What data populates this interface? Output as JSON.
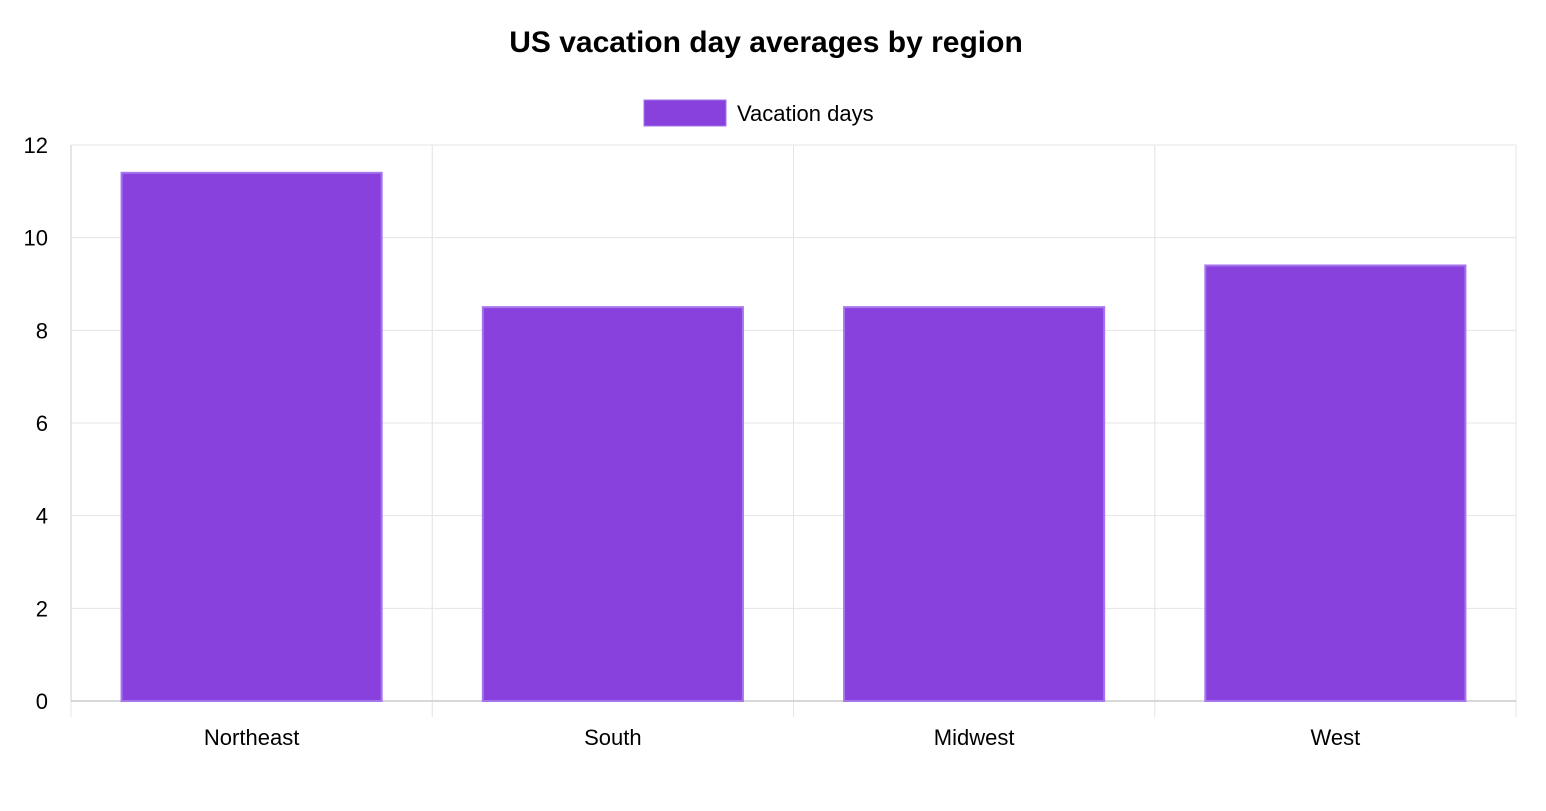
{
  "chart_data": {
    "type": "bar",
    "title": "US vacation day averages by region",
    "categories": [
      "Northeast",
      "South",
      "Midwest",
      "West"
    ],
    "series": [
      {
        "name": "Vacation days",
        "values": [
          11.4,
          8.5,
          8.5,
          9.4
        ]
      }
    ],
    "ylim": [
      0,
      12
    ],
    "yticks": [
      0,
      2,
      4,
      6,
      8,
      10,
      12
    ],
    "grid": true,
    "legend_position": "top-center",
    "colors": {
      "bar_fill": "#8841dd",
      "bar_border": "#a575ec",
      "grid": "#e4e4e4",
      "axis": "#cccccc",
      "text": "#000000"
    }
  }
}
